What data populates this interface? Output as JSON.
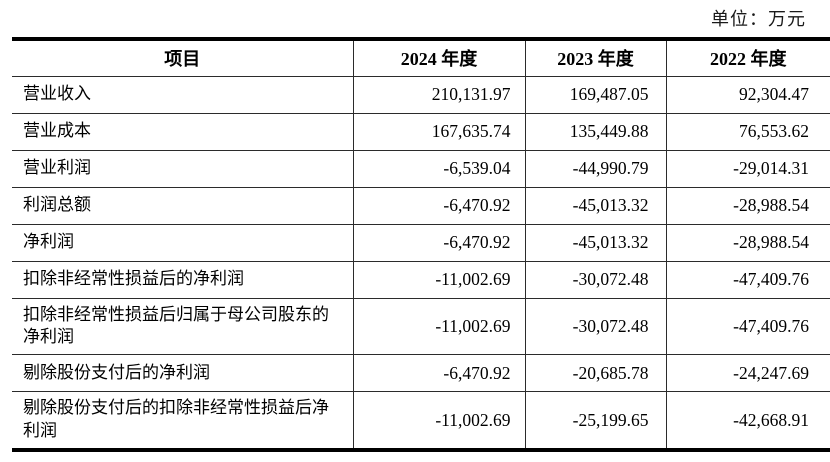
{
  "unit_label": "单位：万元",
  "table": {
    "headers": [
      "项目",
      "2024 年度",
      "2023 年度",
      "2022 年度"
    ],
    "rows": [
      {
        "label": "营业收入",
        "v2024": "210,131.97",
        "v2023": "169,487.05",
        "v2022": "92,304.47"
      },
      {
        "label": "营业成本",
        "v2024": "167,635.74",
        "v2023": "135,449.88",
        "v2022": "76,553.62"
      },
      {
        "label": "营业利润",
        "v2024": "-6,539.04",
        "v2023": "-44,990.79",
        "v2022": "-29,014.31"
      },
      {
        "label": "利润总额",
        "v2024": "-6,470.92",
        "v2023": "-45,013.32",
        "v2022": "-28,988.54"
      },
      {
        "label": "净利润",
        "v2024": "-6,470.92",
        "v2023": "-45,013.32",
        "v2022": "-28,988.54"
      },
      {
        "label": "扣除非经常性损益后的净利润",
        "v2024": "-11,002.69",
        "v2023": "-30,072.48",
        "v2022": "-47,409.76"
      },
      {
        "label": "扣除非经常性损益后归属于母公司股东的净利润",
        "v2024": "-11,002.69",
        "v2023": "-30,072.48",
        "v2022": "-47,409.76"
      },
      {
        "label": "剔除股份支付后的净利润",
        "v2024": "-6,470.92",
        "v2023": "-20,685.78",
        "v2022": "-24,247.69"
      },
      {
        "label": "剔除股份支付后的扣除非经常性损益后净利润",
        "v2024": "-11,002.69",
        "v2023": "-25,199.65",
        "v2022": "-42,668.91"
      }
    ]
  }
}
